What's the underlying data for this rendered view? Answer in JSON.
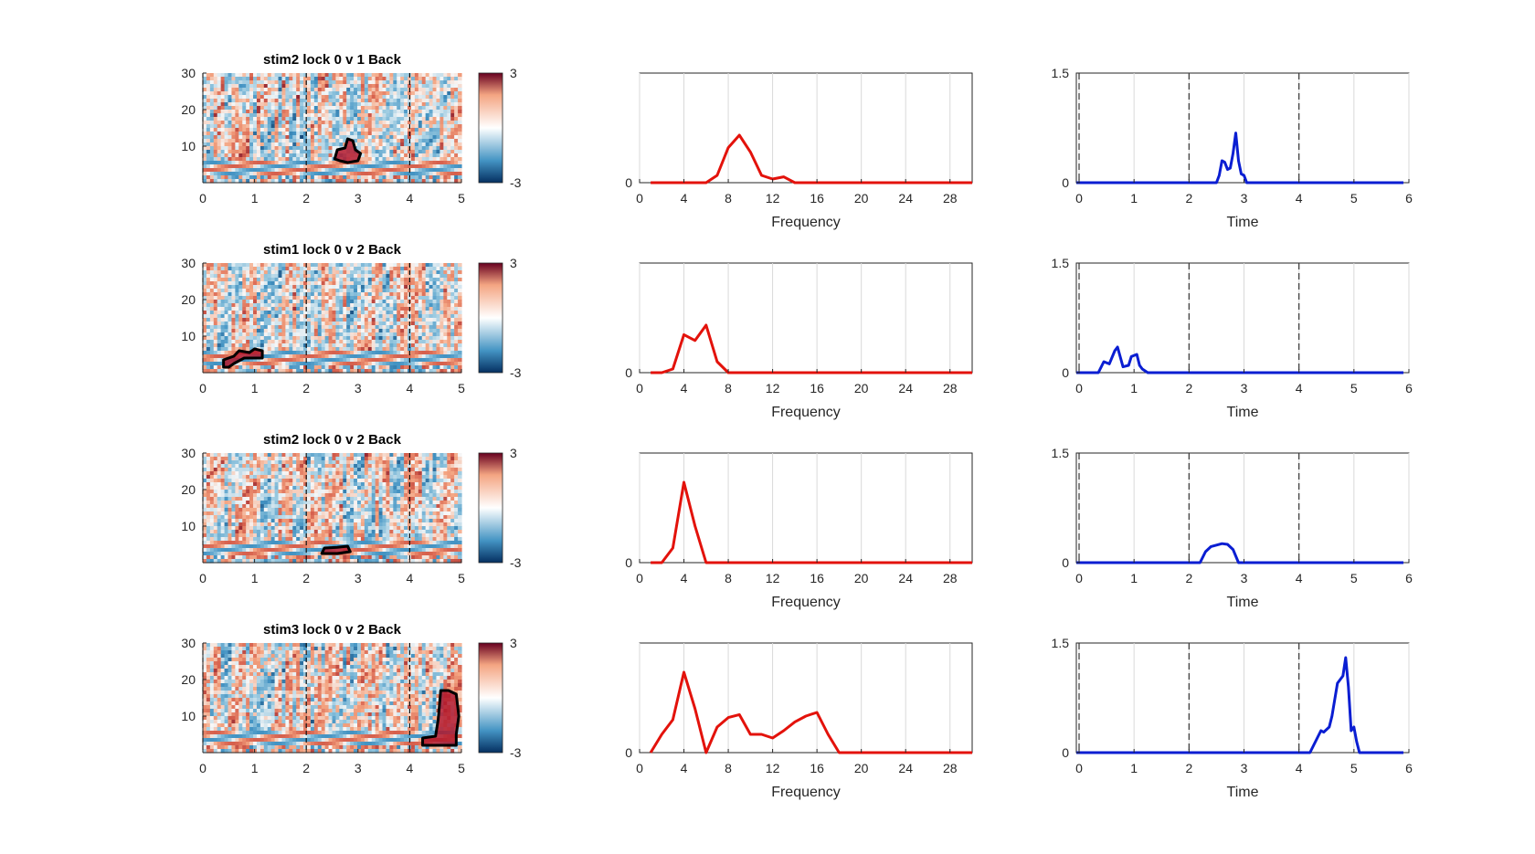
{
  "figure": {
    "background": "#ffffff",
    "colors": {
      "freq_line": "#e3120b",
      "time_line": "#0a1ed2",
      "cluster_outline": "#000000",
      "grid": "#d9d9d9",
      "axis": "#262626"
    }
  },
  "chart_data": [
    {
      "type": "heatmap",
      "row": 0,
      "title": "stim2 lock 0 v 1 Back",
      "xlim": [
        0,
        5
      ],
      "ylim": [
        0,
        30
      ],
      "xticks": [
        "0",
        "1",
        "2",
        "3",
        "4",
        "5"
      ],
      "yticks": [
        "10",
        "20",
        "30"
      ],
      "event_lines_x": [
        0,
        2,
        4
      ],
      "colorbar": {
        "min": -3,
        "max": 3,
        "labels": [
          "3",
          "-3"
        ],
        "colormap": "blue-white-red"
      },
      "cluster_outline": [
        [
          2.55,
          6.5
        ],
        [
          2.6,
          9
        ],
        [
          2.75,
          9.5
        ],
        [
          2.8,
          12
        ],
        [
          2.9,
          11.5
        ],
        [
          2.95,
          9
        ],
        [
          3.05,
          8
        ],
        [
          3.0,
          6
        ],
        [
          2.8,
          5.5
        ],
        [
          2.65,
          6
        ]
      ]
    },
    {
      "type": "line",
      "row": 0,
      "xlabel": "Frequency",
      "xlim": [
        0,
        30
      ],
      "ylim": [
        0,
        1.5
      ],
      "xticks": [
        "0",
        "4",
        "8",
        "12",
        "16",
        "20",
        "24",
        "28"
      ],
      "yticks": [
        "0"
      ],
      "grid": true,
      "color": "#e3120b",
      "x": [
        1,
        2,
        3,
        4,
        5,
        6,
        7,
        8,
        9,
        10,
        11,
        12,
        13,
        14,
        15,
        16,
        17,
        18,
        19,
        20,
        21,
        22,
        23,
        24,
        25,
        26,
        27,
        28,
        29,
        30
      ],
      "y": [
        0,
        0,
        0,
        0,
        0,
        0,
        0.1,
        0.48,
        0.65,
        0.42,
        0.1,
        0.05,
        0.08,
        0,
        0,
        0,
        0,
        0,
        0,
        0,
        0,
        0,
        0,
        0,
        0,
        0,
        0,
        0,
        0,
        0
      ]
    },
    {
      "type": "line",
      "row": 0,
      "xlabel": "Time",
      "xlim": [
        -0.05,
        6
      ],
      "ylim": [
        0,
        1.5
      ],
      "xticks": [
        "0",
        "1",
        "2",
        "3",
        "4",
        "5",
        "6"
      ],
      "yticks": [
        "0",
        "1.5"
      ],
      "grid": true,
      "event_lines_x": [
        0,
        2,
        4
      ],
      "color": "#0a1ed2",
      "x": [
        -0.05,
        2.5,
        2.55,
        2.6,
        2.65,
        2.7,
        2.75,
        2.8,
        2.85,
        2.9,
        2.95,
        3.0,
        3.05,
        5.9
      ],
      "y": [
        0,
        0,
        0.1,
        0.3,
        0.28,
        0.18,
        0.2,
        0.4,
        0.68,
        0.3,
        0.12,
        0.1,
        0,
        0
      ]
    },
    {
      "type": "heatmap",
      "row": 1,
      "title": "stim1 lock 0 v 2 Back",
      "xlim": [
        0,
        5
      ],
      "ylim": [
        0,
        30
      ],
      "xticks": [
        "0",
        "1",
        "2",
        "3",
        "4",
        "5"
      ],
      "yticks": [
        "10",
        "20",
        "30"
      ],
      "event_lines_x": [
        0,
        2,
        4
      ],
      "colorbar": {
        "min": -3,
        "max": 3,
        "labels": [
          "3",
          "-3"
        ],
        "colormap": "blue-white-red"
      },
      "cluster_outline": [
        [
          0.4,
          1.5
        ],
        [
          0.4,
          3.5
        ],
        [
          0.6,
          4.5
        ],
        [
          0.7,
          6
        ],
        [
          0.9,
          5.5
        ],
        [
          1.0,
          6.5
        ],
        [
          1.15,
          6
        ],
        [
          1.15,
          4
        ],
        [
          0.8,
          4
        ],
        [
          0.6,
          2.5
        ],
        [
          0.5,
          1.5
        ]
      ]
    },
    {
      "type": "line",
      "row": 1,
      "xlabel": "Frequency",
      "xlim": [
        0,
        30
      ],
      "ylim": [
        0,
        1.5
      ],
      "xticks": [
        "0",
        "4",
        "8",
        "12",
        "16",
        "20",
        "24",
        "28"
      ],
      "yticks": [
        "0"
      ],
      "grid": true,
      "color": "#e3120b",
      "x": [
        1,
        2,
        3,
        4,
        5,
        6,
        7,
        8,
        9,
        10,
        11,
        12,
        13,
        14,
        15,
        16,
        17,
        18,
        19,
        20,
        21,
        22,
        23,
        24,
        25,
        26,
        27,
        28,
        29,
        30
      ],
      "y": [
        0,
        0,
        0.05,
        0.52,
        0.44,
        0.65,
        0.15,
        0,
        0,
        0,
        0,
        0,
        0,
        0,
        0,
        0,
        0,
        0,
        0,
        0,
        0,
        0,
        0,
        0,
        0,
        0,
        0,
        0,
        0,
        0
      ]
    },
    {
      "type": "line",
      "row": 1,
      "xlabel": "Time",
      "xlim": [
        -0.05,
        6
      ],
      "ylim": [
        0,
        1.5
      ],
      "xticks": [
        "0",
        "1",
        "2",
        "3",
        "4",
        "5",
        "6"
      ],
      "yticks": [
        "0",
        "1.5"
      ],
      "grid": true,
      "event_lines_x": [
        0,
        2,
        4
      ],
      "color": "#0a1ed2",
      "x": [
        -0.05,
        0.35,
        0.45,
        0.55,
        0.65,
        0.7,
        0.8,
        0.9,
        0.95,
        1.05,
        1.1,
        1.15,
        1.25,
        5.9
      ],
      "y": [
        0,
        0,
        0.15,
        0.12,
        0.3,
        0.35,
        0.08,
        0.1,
        0.22,
        0.25,
        0.1,
        0.05,
        0,
        0
      ]
    },
    {
      "type": "heatmap",
      "row": 2,
      "title": "stim2 lock 0 v 2 Back",
      "xlim": [
        0,
        5
      ],
      "ylim": [
        0,
        30
      ],
      "xticks": [
        "0",
        "1",
        "2",
        "3",
        "4",
        "5"
      ],
      "yticks": [
        "10",
        "20",
        "30"
      ],
      "event_lines_x": [
        0,
        2,
        4
      ],
      "colorbar": {
        "min": -3,
        "max": 3,
        "labels": [
          "3",
          "-3"
        ],
        "colormap": "blue-white-red"
      },
      "cluster_outline": [
        [
          2.3,
          2.5
        ],
        [
          2.35,
          4
        ],
        [
          2.6,
          4.2
        ],
        [
          2.8,
          4.5
        ],
        [
          2.85,
          3
        ],
        [
          2.6,
          2.5
        ]
      ]
    },
    {
      "type": "line",
      "row": 2,
      "xlabel": "Frequency",
      "xlim": [
        0,
        30
      ],
      "ylim": [
        0,
        1.5
      ],
      "xticks": [
        "0",
        "4",
        "8",
        "12",
        "16",
        "20",
        "24",
        "28"
      ],
      "yticks": [
        "0"
      ],
      "grid": true,
      "color": "#e3120b",
      "x": [
        1,
        2,
        3,
        4,
        5,
        6,
        7,
        8,
        9,
        10,
        11,
        12,
        13,
        14,
        15,
        16,
        17,
        18,
        19,
        20,
        21,
        22,
        23,
        24,
        25,
        26,
        27,
        28,
        29,
        30
      ],
      "y": [
        0,
        0,
        0.2,
        1.1,
        0.5,
        0,
        0,
        0,
        0,
        0,
        0,
        0,
        0,
        0,
        0,
        0,
        0,
        0,
        0,
        0,
        0,
        0,
        0,
        0,
        0,
        0,
        0,
        0,
        0,
        0
      ]
    },
    {
      "type": "line",
      "row": 2,
      "xlabel": "Time",
      "xlim": [
        -0.05,
        6
      ],
      "ylim": [
        0,
        1.5
      ],
      "xticks": [
        "0",
        "1",
        "2",
        "3",
        "4",
        "5",
        "6"
      ],
      "yticks": [
        "0",
        "1.5"
      ],
      "grid": true,
      "event_lines_x": [
        0,
        2,
        4
      ],
      "color": "#0a1ed2",
      "x": [
        -0.05,
        2.2,
        2.3,
        2.4,
        2.5,
        2.6,
        2.7,
        2.8,
        2.9,
        5.9
      ],
      "y": [
        0,
        0,
        0.15,
        0.22,
        0.24,
        0.26,
        0.25,
        0.18,
        0,
        0
      ]
    },
    {
      "type": "heatmap",
      "row": 3,
      "title": "stim3 lock 0 v 2 Back",
      "xlim": [
        0,
        5
      ],
      "ylim": [
        0,
        30
      ],
      "xticks": [
        "0",
        "1",
        "2",
        "3",
        "4",
        "5"
      ],
      "yticks": [
        "10",
        "20",
        "30"
      ],
      "event_lines_x": [
        0,
        2,
        4
      ],
      "colorbar": {
        "min": -3,
        "max": 3,
        "labels": [
          "3",
          "-3"
        ],
        "colormap": "blue-white-red"
      },
      "cluster_outline": [
        [
          4.25,
          2
        ],
        [
          4.25,
          4
        ],
        [
          4.5,
          4.5
        ],
        [
          4.55,
          9
        ],
        [
          4.6,
          17
        ],
        [
          4.75,
          17
        ],
        [
          4.9,
          16
        ],
        [
          4.95,
          10
        ],
        [
          4.9,
          5
        ],
        [
          4.9,
          2
        ]
      ]
    },
    {
      "type": "line",
      "row": 3,
      "xlabel": "Frequency",
      "xlim": [
        0,
        30
      ],
      "ylim": [
        0,
        1.5
      ],
      "xticks": [
        "0",
        "4",
        "8",
        "12",
        "16",
        "20",
        "24",
        "28"
      ],
      "yticks": [
        "0"
      ],
      "grid": true,
      "color": "#e3120b",
      "x": [
        1,
        2,
        3,
        4,
        5,
        6,
        7,
        8,
        9,
        10,
        11,
        12,
        13,
        14,
        15,
        16,
        17,
        18,
        19,
        20,
        21,
        22,
        23,
        24,
        25,
        26,
        27,
        28,
        29,
        30
      ],
      "y": [
        0,
        0.25,
        0.45,
        1.1,
        0.6,
        0,
        0.35,
        0.48,
        0.52,
        0.25,
        0.25,
        0.2,
        0.3,
        0.42,
        0.5,
        0.55,
        0.25,
        0,
        0,
        0,
        0,
        0,
        0,
        0,
        0,
        0,
        0,
        0,
        0,
        0
      ]
    },
    {
      "type": "line",
      "row": 3,
      "xlabel": "Time",
      "xlim": [
        -0.05,
        6
      ],
      "ylim": [
        0,
        1.5
      ],
      "xticks": [
        "0",
        "1",
        "2",
        "3",
        "4",
        "5",
        "6"
      ],
      "yticks": [
        "0",
        "1.5"
      ],
      "grid": true,
      "event_lines_x": [
        0,
        2,
        4
      ],
      "color": "#0a1ed2",
      "x": [
        -0.05,
        4.2,
        4.3,
        4.4,
        4.45,
        4.55,
        4.6,
        4.7,
        4.75,
        4.8,
        4.85,
        4.9,
        4.95,
        5.0,
        5.05,
        5.1,
        5.15,
        5.9
      ],
      "y": [
        0,
        0,
        0.15,
        0.3,
        0.28,
        0.35,
        0.5,
        0.95,
        1.0,
        1.05,
        1.3,
        0.9,
        0.3,
        0.35,
        0.15,
        0,
        0,
        0
      ]
    }
  ]
}
